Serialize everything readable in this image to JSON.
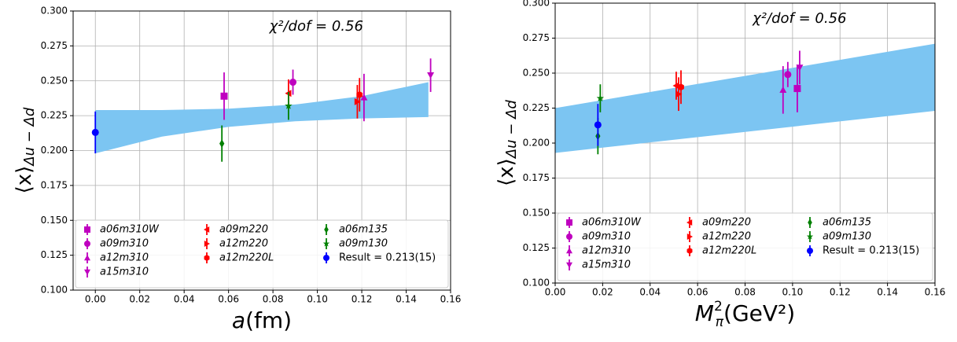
{
  "chart_data": [
    {
      "type": "errorbar",
      "xlabel": "a",
      "xlabel_unit": "(fm)",
      "ylabel": "⟨x⟩",
      "ylabel_sub": "Δu − Δd",
      "annotation": "χ²/dof = 0.56",
      "xlim": [
        -0.01,
        0.16
      ],
      "ylim": [
        0.1,
        0.3
      ],
      "xticks": [
        {
          "value": 0,
          "label": "0.00"
        },
        {
          "value": 0.02,
          "label": "0.02"
        },
        {
          "value": 0.04,
          "label": "0.04"
        },
        {
          "value": 0.06,
          "label": "0.06"
        },
        {
          "value": 0.08,
          "label": "0.08"
        },
        {
          "value": 0.1,
          "label": "0.10"
        },
        {
          "value": 0.12,
          "label": "0.12"
        },
        {
          "value": 0.14,
          "label": "0.14"
        },
        {
          "value": 0.16,
          "label": "0.16"
        }
      ],
      "yticks": [
        {
          "value": 0.1,
          "label": "0.100"
        },
        {
          "value": 0.125,
          "label": "0.125"
        },
        {
          "value": 0.15,
          "label": "0.150"
        },
        {
          "value": 0.175,
          "label": "0.175"
        },
        {
          "value": 0.2,
          "label": "0.200"
        },
        {
          "value": 0.225,
          "label": "0.225"
        },
        {
          "value": 0.25,
          "label": "0.250"
        },
        {
          "value": 0.275,
          "label": "0.275"
        },
        {
          "value": 0.3,
          "label": "0.300"
        }
      ],
      "grid": true,
      "legend": "lower center",
      "band": {
        "color": "#7cc5f2",
        "x": [
          0,
          0.03,
          0.06,
          0.09,
          0.12,
          0.15
        ],
        "upper": [
          0.229,
          0.229,
          0.23,
          0.233,
          0.239,
          0.249
        ],
        "lower": [
          0.198,
          0.21,
          0.217,
          0.221,
          0.223,
          0.224
        ]
      },
      "series": [
        {
          "name": "a06m310W",
          "color": "#bf00bf",
          "marker": "s",
          "x": [
            0.058
          ],
          "values": [
            0.239
          ],
          "errors": [
            0.017
          ]
        },
        {
          "name": "a09m310",
          "color": "#bf00bf",
          "marker": "o",
          "x": [
            0.089
          ],
          "values": [
            0.249
          ],
          "errors": [
            0.009
          ]
        },
        {
          "name": "a12m310",
          "color": "#bf00bf",
          "marker": "^",
          "x": [
            0.121
          ],
          "values": [
            0.238
          ],
          "errors": [
            0.017
          ]
        },
        {
          "name": "a15m310",
          "color": "#bf00bf",
          "marker": "v",
          "x": [
            0.151
          ],
          "values": [
            0.254
          ],
          "errors": [
            0.012
          ]
        },
        {
          "name": "a09m220",
          "color": "#ff0000",
          "marker": "<",
          "x": [
            0.087
          ],
          "values": [
            0.241
          ],
          "errors": [
            0.01
          ]
        },
        {
          "name": "a12m220",
          "color": "#ff0000",
          "marker": ">",
          "x": [
            0.118
          ],
          "values": [
            0.235
          ],
          "errors": [
            0.012
          ]
        },
        {
          "name": "a12m220L",
          "color": "#ff0000",
          "marker": "h",
          "x": [
            0.119
          ],
          "values": [
            0.24
          ],
          "errors": [
            0.012
          ]
        },
        {
          "name": "a06m135",
          "color": "#008000",
          "marker": "d",
          "x": [
            0.057
          ],
          "values": [
            0.205
          ],
          "errors": [
            0.013
          ]
        },
        {
          "name": "a09m130",
          "color": "#008000",
          "marker": "*",
          "x": [
            0.087
          ],
          "values": [
            0.232
          ],
          "errors": [
            0.01
          ]
        },
        {
          "name": "Result = 0.213(15)",
          "color": "#0000ff",
          "marker": "o",
          "x": [
            0
          ],
          "values": [
            0.213
          ],
          "errors": [
            0.015
          ]
        }
      ]
    },
    {
      "type": "errorbar",
      "xlabel": "M",
      "xlabel_sub": "π",
      "xlabel_sup": "2",
      "xlabel_unit": "(GeV²)",
      "ylabel": "⟨x⟩",
      "ylabel_sub": "Δu − Δd",
      "annotation": "χ²/dof = 0.56",
      "xlim": [
        0,
        0.16
      ],
      "ylim": [
        0.1,
        0.3
      ],
      "xticks": [
        {
          "value": 0,
          "label": "0.00"
        },
        {
          "value": 0.02,
          "label": "0.02"
        },
        {
          "value": 0.04,
          "label": "0.04"
        },
        {
          "value": 0.06,
          "label": "0.06"
        },
        {
          "value": 0.08,
          "label": "0.08"
        },
        {
          "value": 0.1,
          "label": "0.10"
        },
        {
          "value": 0.12,
          "label": "0.12"
        },
        {
          "value": 0.14,
          "label": "0.14"
        },
        {
          "value": 0.16,
          "label": "0.16"
        }
      ],
      "yticks": [
        {
          "value": 0.1,
          "label": "0.100"
        },
        {
          "value": 0.125,
          "label": "0.125"
        },
        {
          "value": 0.15,
          "label": "0.150"
        },
        {
          "value": 0.175,
          "label": "0.175"
        },
        {
          "value": 0.2,
          "label": "0.200"
        },
        {
          "value": 0.225,
          "label": "0.225"
        },
        {
          "value": 0.25,
          "label": "0.250"
        },
        {
          "value": 0.275,
          "label": "0.275"
        },
        {
          "value": 0.3,
          "label": "0.300"
        }
      ],
      "grid": true,
      "legend": "lower center",
      "band": {
        "color": "#7cc5f2",
        "x": [
          0,
          0.16
        ],
        "upper": [
          0.225,
          0.271
        ],
        "lower": [
          0.193,
          0.223
        ]
      },
      "series": [
        {
          "name": "a06m310W",
          "color": "#bf00bf",
          "marker": "s",
          "x": [
            0.102
          ],
          "values": [
            0.239
          ],
          "errors": [
            0.017
          ]
        },
        {
          "name": "a09m310",
          "color": "#bf00bf",
          "marker": "o",
          "x": [
            0.098
          ],
          "values": [
            0.249
          ],
          "errors": [
            0.009
          ]
        },
        {
          "name": "a12m310",
          "color": "#bf00bf",
          "marker": "^",
          "x": [
            0.096
          ],
          "values": [
            0.238
          ],
          "errors": [
            0.017
          ]
        },
        {
          "name": "a15m310",
          "color": "#bf00bf",
          "marker": "v",
          "x": [
            0.103
          ],
          "values": [
            0.254
          ],
          "errors": [
            0.012
          ]
        },
        {
          "name": "a09m220",
          "color": "#ff0000",
          "marker": "<",
          "x": [
            0.051
          ],
          "values": [
            0.241
          ],
          "errors": [
            0.01
          ]
        },
        {
          "name": "a12m220",
          "color": "#ff0000",
          "marker": ">",
          "x": [
            0.052
          ],
          "values": [
            0.235
          ],
          "errors": [
            0.012
          ]
        },
        {
          "name": "a12m220L",
          "color": "#ff0000",
          "marker": "h",
          "x": [
            0.053
          ],
          "values": [
            0.24
          ],
          "errors": [
            0.012
          ]
        },
        {
          "name": "a06m135",
          "color": "#008000",
          "marker": "d",
          "x": [
            0.018
          ],
          "values": [
            0.205
          ],
          "errors": [
            0.013
          ]
        },
        {
          "name": "a09m130",
          "color": "#008000",
          "marker": "*",
          "x": [
            0.019
          ],
          "values": [
            0.232
          ],
          "errors": [
            0.01
          ]
        },
        {
          "name": "Result = 0.213(15)",
          "color": "#0000ff",
          "marker": "o",
          "x": [
            0.018
          ],
          "values": [
            0.213
          ],
          "errors": [
            0.015
          ]
        }
      ]
    }
  ]
}
